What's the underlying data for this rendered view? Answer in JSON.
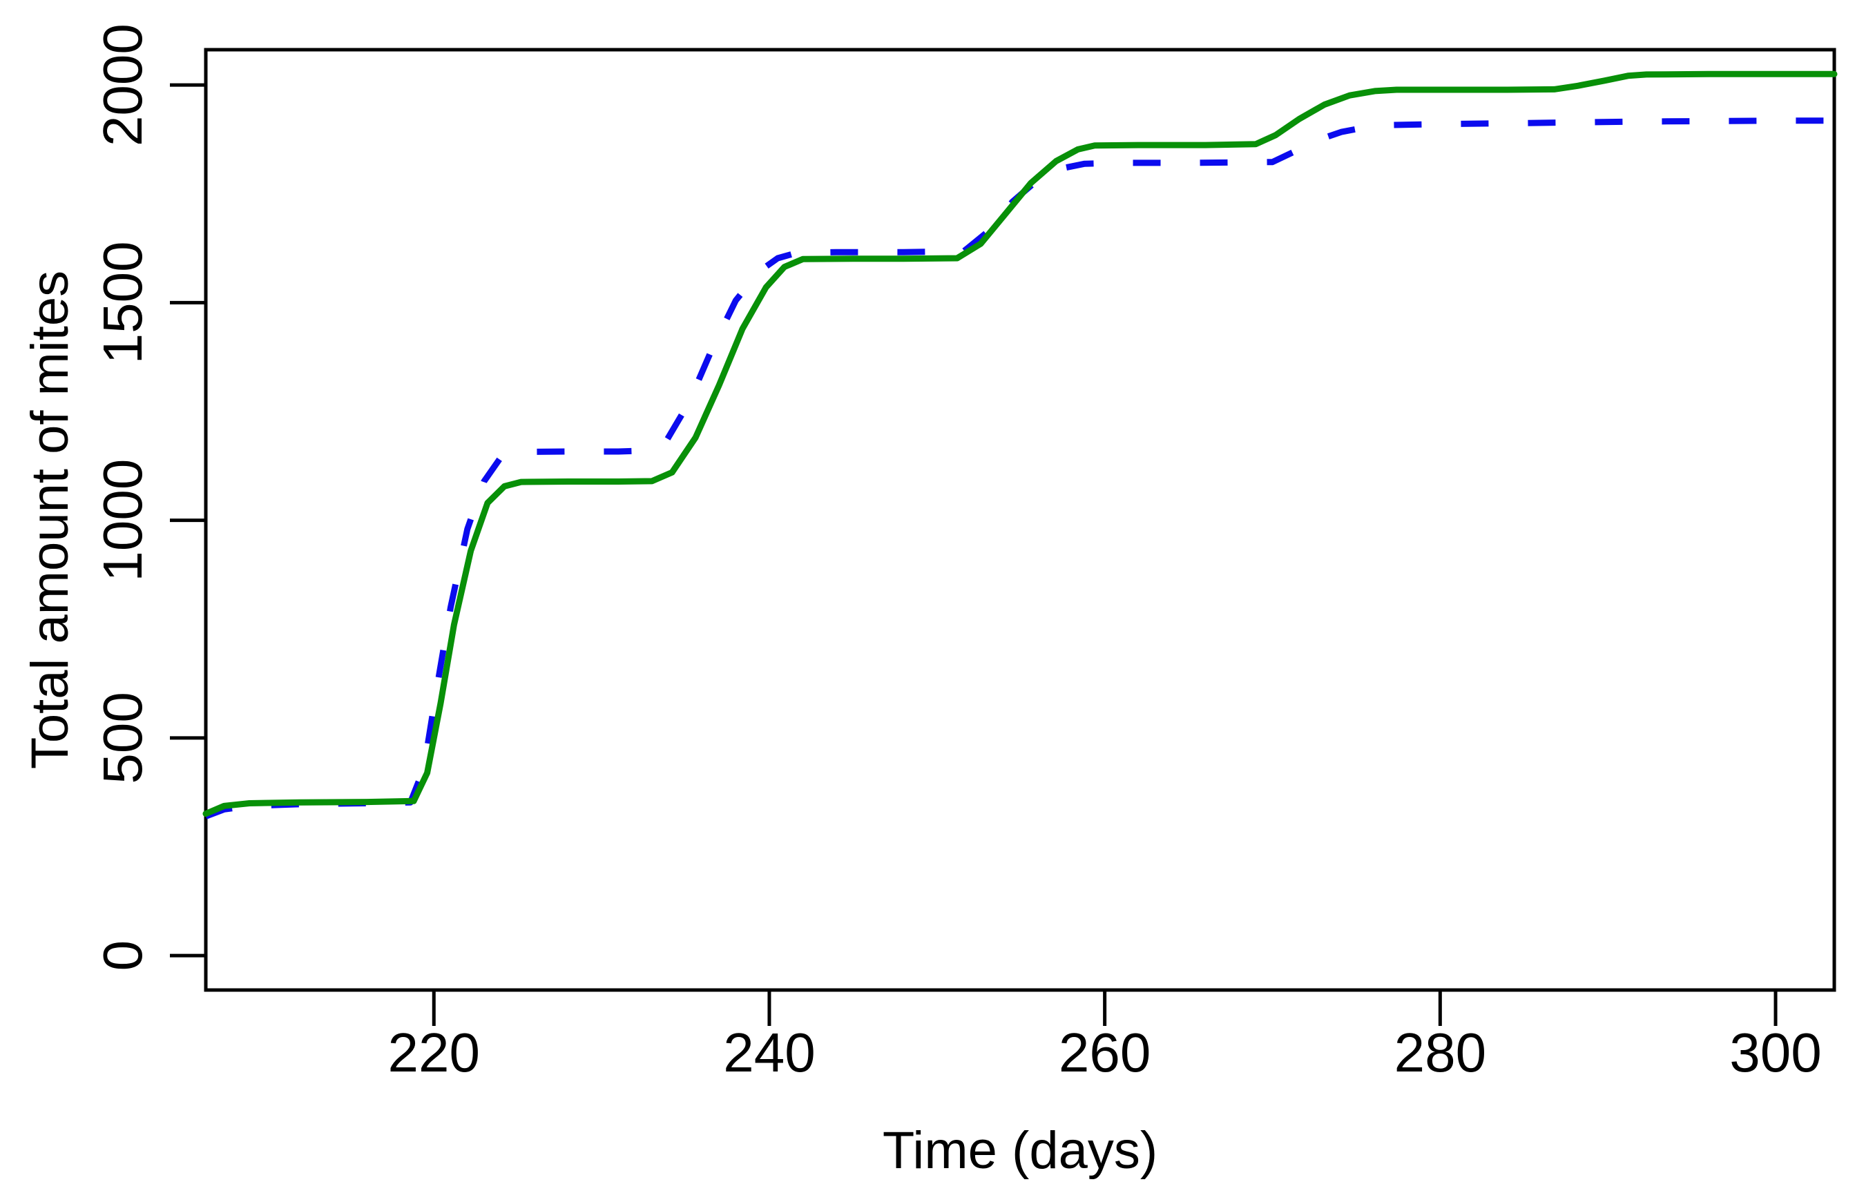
{
  "chart_data": {
    "type": "line",
    "title": "",
    "xlabel": "Time (days)",
    "ylabel": "Total amount of mites",
    "xlim": [
      206.4,
      303.5
    ],
    "ylim": [
      -79,
      2081
    ],
    "x_ticks": [
      220,
      240,
      260,
      280,
      300
    ],
    "y_ticks": [
      0,
      500,
      1000,
      1500,
      2000
    ],
    "grid": false,
    "legend": "none",
    "frame_color": "#000000",
    "background_color": "#ffffff",
    "series": [
      {
        "name": "blue-dashed",
        "color": "#0b0bee",
        "style": "dashed",
        "line_width": 9,
        "dash_pattern": [
          40,
          57
        ],
        "points": [
          [
            206.4,
            320
          ],
          [
            207.5,
            336
          ],
          [
            209,
            344
          ],
          [
            212,
            348
          ],
          [
            216,
            350
          ],
          [
            218.6,
            352
          ],
          [
            219.4,
            430
          ],
          [
            220.2,
            620
          ],
          [
            221.0,
            800
          ],
          [
            222.0,
            980
          ],
          [
            223.0,
            1090
          ],
          [
            224.0,
            1145
          ],
          [
            225.0,
            1157
          ],
          [
            228,
            1158
          ],
          [
            231,
            1158
          ],
          [
            232.7,
            1160
          ],
          [
            233.9,
            1185
          ],
          [
            235.2,
            1270
          ],
          [
            236.6,
            1395
          ],
          [
            238.0,
            1505
          ],
          [
            239.4,
            1572
          ],
          [
            240.5,
            1602
          ],
          [
            241.6,
            1614
          ],
          [
            244,
            1616
          ],
          [
            248,
            1616
          ],
          [
            251.6,
            1618
          ],
          [
            253.0,
            1662
          ],
          [
            254.5,
            1732
          ],
          [
            256.0,
            1782
          ],
          [
            257.4,
            1808
          ],
          [
            258.8,
            1819
          ],
          [
            261,
            1821
          ],
          [
            265,
            1821
          ],
          [
            270,
            1823
          ],
          [
            271.2,
            1845
          ],
          [
            272.6,
            1872
          ],
          [
            274.1,
            1892
          ],
          [
            275.6,
            1903
          ],
          [
            277.0,
            1908
          ],
          [
            280,
            1910
          ],
          [
            284,
            1912
          ],
          [
            288,
            1914
          ],
          [
            292,
            1916
          ],
          [
            296,
            1917
          ],
          [
            300,
            1918
          ],
          [
            303.5,
            1918
          ]
        ]
      },
      {
        "name": "green-solid",
        "color": "#089008",
        "style": "solid",
        "line_width": 9,
        "dash_pattern": null,
        "points": [
          [
            206.4,
            326
          ],
          [
            207.5,
            344
          ],
          [
            209,
            350
          ],
          [
            212,
            352
          ],
          [
            216,
            353
          ],
          [
            218.8,
            355
          ],
          [
            219.6,
            420
          ],
          [
            220.4,
            580
          ],
          [
            221.2,
            760
          ],
          [
            222.2,
            930
          ],
          [
            223.2,
            1040
          ],
          [
            224.2,
            1078
          ],
          [
            225.2,
            1088
          ],
          [
            228,
            1089
          ],
          [
            231,
            1089
          ],
          [
            233.0,
            1090
          ],
          [
            234.2,
            1110
          ],
          [
            235.6,
            1190
          ],
          [
            237.0,
            1310
          ],
          [
            238.4,
            1440
          ],
          [
            239.8,
            1535
          ],
          [
            240.9,
            1582
          ],
          [
            242.0,
            1600
          ],
          [
            245,
            1601
          ],
          [
            248,
            1601
          ],
          [
            251.2,
            1602
          ],
          [
            252.6,
            1635
          ],
          [
            254.1,
            1705
          ],
          [
            255.6,
            1775
          ],
          [
            257.1,
            1825
          ],
          [
            258.4,
            1852
          ],
          [
            259.4,
            1861
          ],
          [
            262,
            1862
          ],
          [
            266,
            1862
          ],
          [
            269.0,
            1864
          ],
          [
            270.2,
            1885
          ],
          [
            271.6,
            1922
          ],
          [
            273.1,
            1955
          ],
          [
            274.6,
            1976
          ],
          [
            276.1,
            1986
          ],
          [
            277.4,
            1989
          ],
          [
            280,
            1989
          ],
          [
            284,
            1989
          ],
          [
            286.8,
            1990
          ],
          [
            288.2,
            1998
          ],
          [
            289.8,
            2010
          ],
          [
            291.2,
            2021
          ],
          [
            292.3,
            2024
          ],
          [
            296,
            2025
          ],
          [
            300,
            2025
          ],
          [
            303.5,
            2025
          ]
        ]
      }
    ]
  }
}
